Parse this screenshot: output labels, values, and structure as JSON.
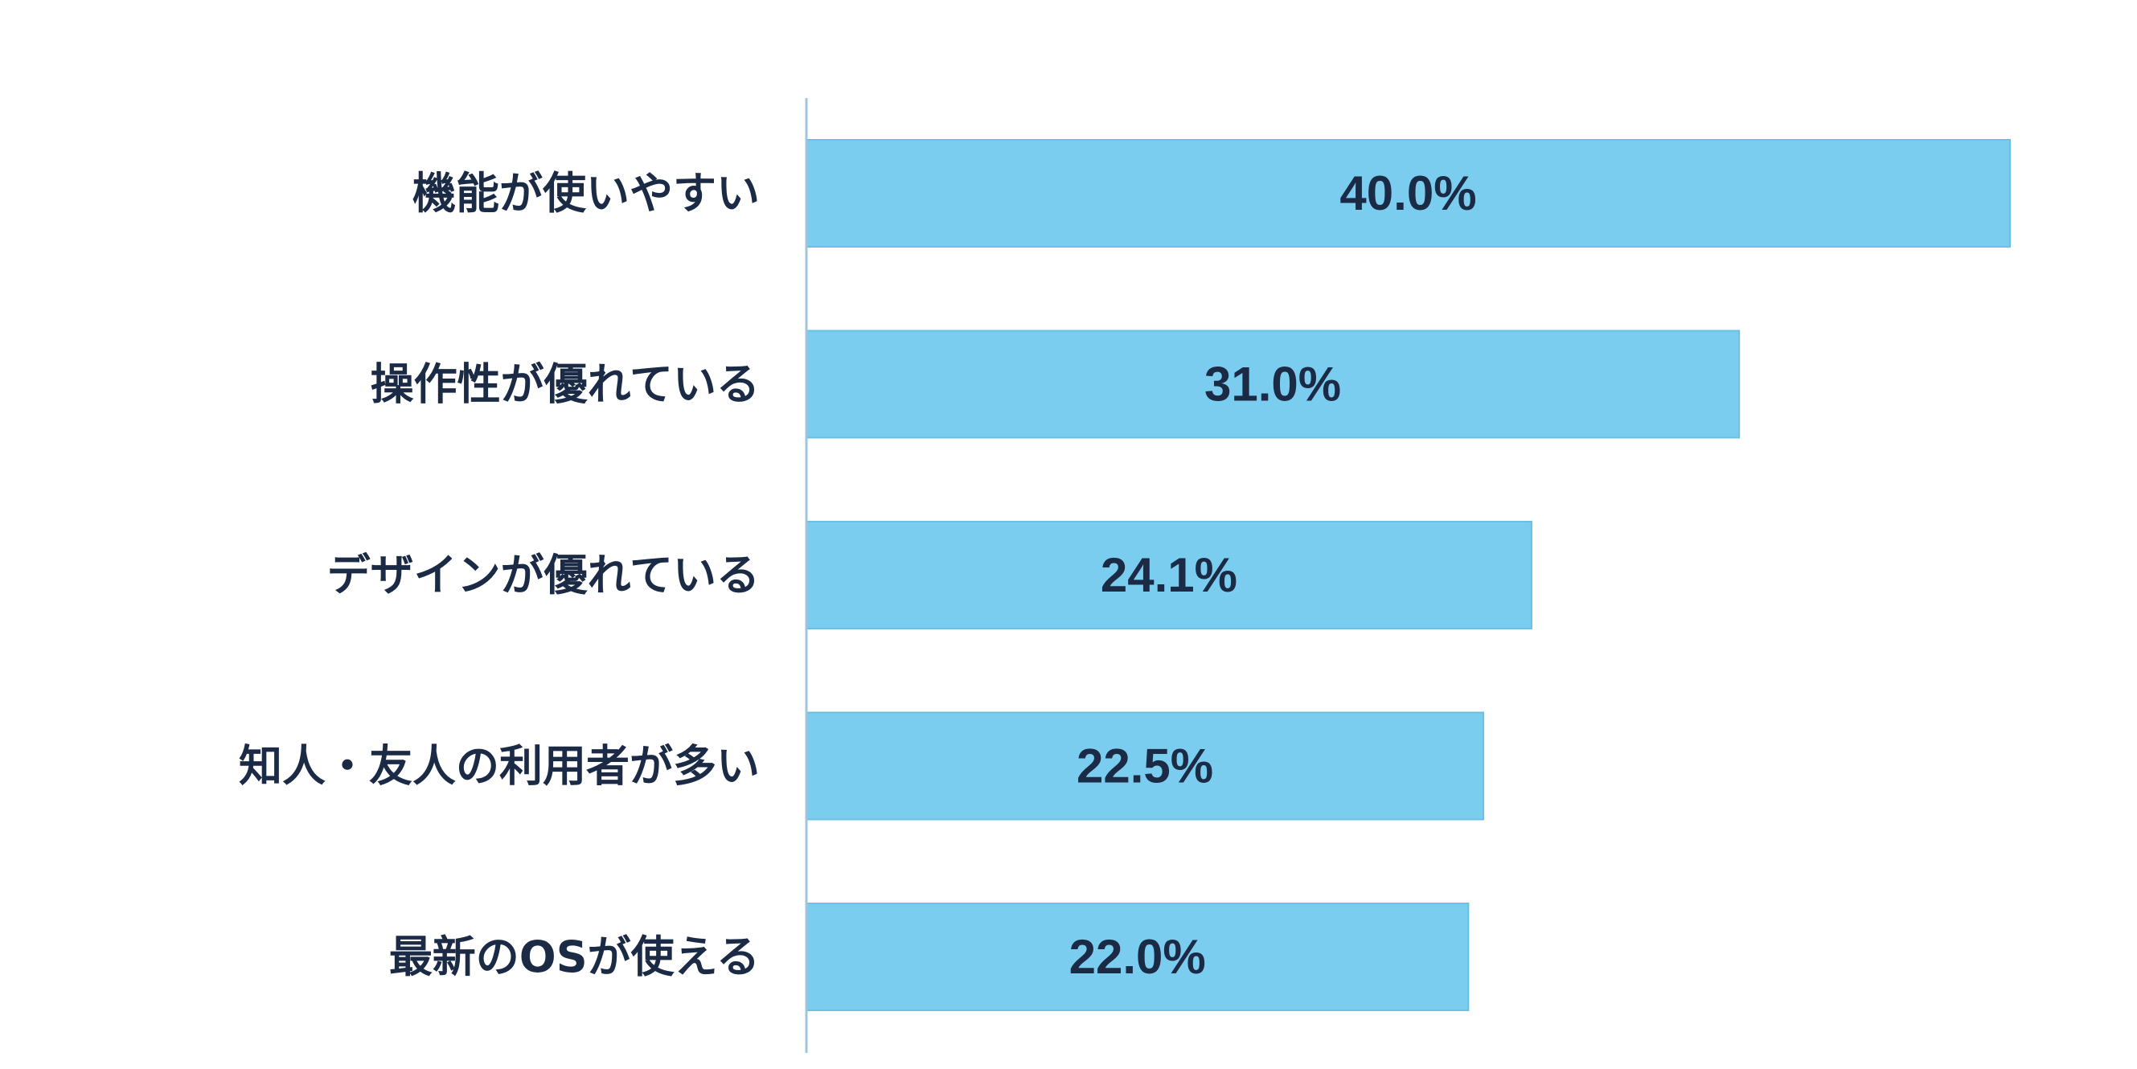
{
  "chart_data": {
    "type": "bar",
    "orientation": "horizontal",
    "categories": [
      "機能が使いやすい",
      "操作性が優れている",
      "デザインが優れている",
      "知人・友人の利用者が多い",
      "最新のOSが使える"
    ],
    "values": [
      40.0,
      31.0,
      24.1,
      22.5,
      22.0
    ],
    "value_labels": [
      "40.0%",
      "31.0%",
      "24.1%",
      "22.5%",
      "22.0%"
    ],
    "unit": "%",
    "xlim": [
      0,
      40.0
    ],
    "grid": false,
    "legend": "none",
    "colors": {
      "bar": "#7acdef",
      "bar_edge": "#6bbfe3",
      "axis": "#9fc4dc",
      "text": "#1b2a45"
    }
  }
}
